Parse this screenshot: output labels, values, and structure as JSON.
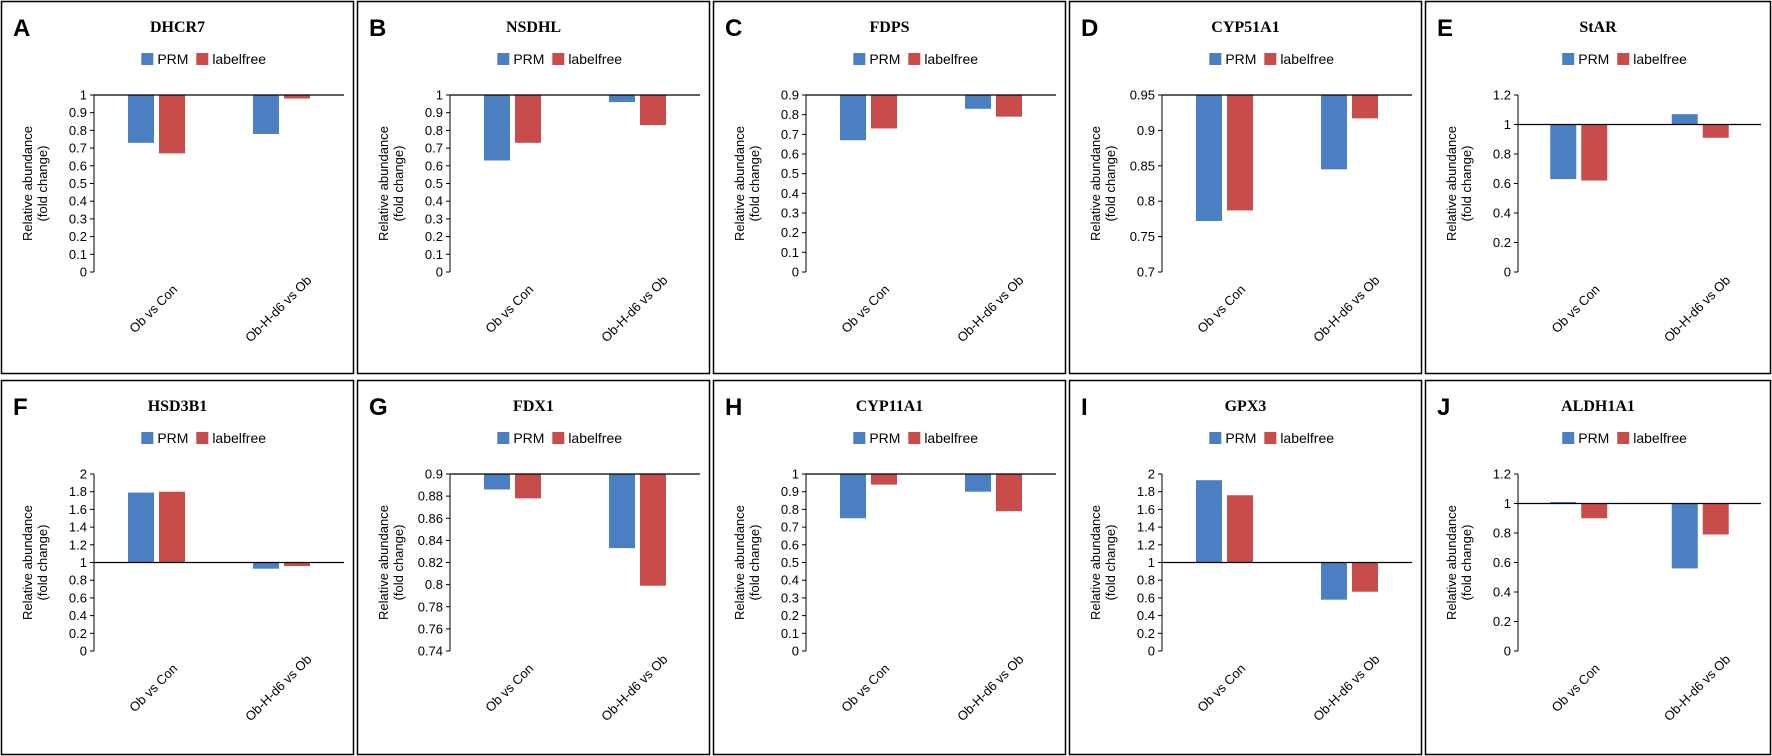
{
  "colors": {
    "PRM": "#4a7fc1",
    "labelfree": "#c84d4a"
  },
  "legend": {
    "prm": "PRM",
    "labelfree": "labelfree"
  },
  "y_label_line1": "Relative abundance",
  "y_label_line2": "(fold change)",
  "chart_data": [
    {
      "panel": "A",
      "type": "bar",
      "title": "DHCR7",
      "categories": [
        "Ob vs Con",
        "Ob-H-d6 vs Ob"
      ],
      "series": [
        {
          "name": "PRM",
          "values": [
            0.73,
            0.78
          ]
        },
        {
          "name": "labelfree",
          "values": [
            0.67,
            0.98
          ]
        }
      ],
      "ylim": [
        0,
        1
      ],
      "baseline": 1,
      "ticks": [
        "0",
        "0.1",
        "0.2",
        "0.3",
        "0.4",
        "0.5",
        "0.6",
        "0.7",
        "0.8",
        "0.9",
        "1"
      ]
    },
    {
      "panel": "B",
      "type": "bar",
      "title": "NSDHL",
      "categories": [
        "Ob vs Con",
        "Ob-H-d6 vs Ob"
      ],
      "series": [
        {
          "name": "PRM",
          "values": [
            0.63,
            0.96
          ]
        },
        {
          "name": "labelfree",
          "values": [
            0.73,
            0.83
          ]
        }
      ],
      "ylim": [
        0,
        1
      ],
      "baseline": 1,
      "ticks": [
        "0",
        "0.1",
        "0.2",
        "0.3",
        "0.4",
        "0.5",
        "0.6",
        "0.7",
        "0.8",
        "0.9",
        "1"
      ]
    },
    {
      "panel": "C",
      "type": "bar",
      "title": "FDPS",
      "categories": [
        "Ob vs Con",
        "Ob-H-d6 vs Ob"
      ],
      "series": [
        {
          "name": "PRM",
          "values": [
            0.67,
            0.83
          ]
        },
        {
          "name": "labelfree",
          "values": [
            0.73,
            0.79
          ]
        }
      ],
      "ylim": [
        0,
        0.9
      ],
      "baseline": 0.9,
      "ticks": [
        "0",
        "0.1",
        "0.2",
        "0.3",
        "0.4",
        "0.5",
        "0.6",
        "0.7",
        "0.8",
        "0.9"
      ]
    },
    {
      "panel": "D",
      "type": "bar",
      "title": "CYP51A1",
      "categories": [
        "Ob vs Con",
        "Ob-H-d6 vs Ob"
      ],
      "series": [
        {
          "name": "PRM",
          "values": [
            0.772,
            0.845
          ]
        },
        {
          "name": "labelfree",
          "values": [
            0.787,
            0.917
          ]
        }
      ],
      "ylim": [
        0.7,
        0.95
      ],
      "baseline": 0.95,
      "ticks": [
        "0.7",
        "0.75",
        "0.8",
        "0.85",
        "0.9",
        "0.95"
      ]
    },
    {
      "panel": "E",
      "type": "bar",
      "title": "StAR",
      "categories": [
        "Ob vs Con",
        "Ob-H-d6 vs Ob"
      ],
      "series": [
        {
          "name": "PRM",
          "values": [
            0.63,
            1.07
          ]
        },
        {
          "name": "labelfree",
          "values": [
            0.62,
            0.91
          ]
        }
      ],
      "ylim": [
        0,
        1.2
      ],
      "baseline": 1,
      "ticks": [
        "0",
        "0.2",
        "0.4",
        "0.6",
        "0.8",
        "1",
        "1.2"
      ]
    },
    {
      "panel": "F",
      "type": "bar",
      "title": "HSD3B1",
      "categories": [
        "Ob vs Con",
        "Ob-H-d6 vs Ob"
      ],
      "series": [
        {
          "name": "PRM",
          "values": [
            1.79,
            0.93
          ]
        },
        {
          "name": "labelfree",
          "values": [
            1.8,
            0.96
          ]
        }
      ],
      "ylim": [
        0,
        2
      ],
      "baseline": 1,
      "ticks": [
        "0",
        "0.2",
        "0.4",
        "0.6",
        "0.8",
        "1",
        "1.2",
        "1.4",
        "1.6",
        "1.8",
        "2"
      ]
    },
    {
      "panel": "G",
      "type": "bar",
      "title": "FDX1",
      "categories": [
        "Ob vs Con",
        "Ob-H-d6 vs Ob"
      ],
      "series": [
        {
          "name": "PRM",
          "values": [
            0.886,
            0.833
          ]
        },
        {
          "name": "labelfree",
          "values": [
            0.878,
            0.799
          ]
        }
      ],
      "ylim": [
        0.74,
        0.9
      ],
      "baseline": 0.9,
      "ticks": [
        "0.74",
        "0.76",
        "0.78",
        "0.8",
        "0.82",
        "0.84",
        "0.86",
        "0.88",
        "0.9"
      ]
    },
    {
      "panel": "H",
      "type": "bar",
      "title": "CYP11A1",
      "categories": [
        "Ob vs Con",
        "Ob-H-d6 vs Ob"
      ],
      "series": [
        {
          "name": "PRM",
          "values": [
            0.75,
            0.9
          ]
        },
        {
          "name": "labelfree",
          "values": [
            0.94,
            0.79
          ]
        }
      ],
      "ylim": [
        0,
        1
      ],
      "baseline": 1,
      "ticks": [
        "0",
        "0.1",
        "0.2",
        "0.3",
        "0.4",
        "0.5",
        "0.6",
        "0.7",
        "0.8",
        "0.9",
        "1"
      ]
    },
    {
      "panel": "I",
      "type": "bar",
      "title": "GPX3",
      "categories": [
        "Ob vs Con",
        "Ob-H-d6 vs Ob"
      ],
      "series": [
        {
          "name": "PRM",
          "values": [
            1.93,
            0.58
          ]
        },
        {
          "name": "labelfree",
          "values": [
            1.76,
            0.67
          ]
        }
      ],
      "ylim": [
        0,
        2
      ],
      "baseline": 1,
      "ticks": [
        "0",
        "0.2",
        "0.4",
        "0.6",
        "0.8",
        "1",
        "1.2",
        "1.4",
        "1.6",
        "1.8",
        "2"
      ]
    },
    {
      "panel": "J",
      "type": "bar",
      "title": "ALDH1A1",
      "categories": [
        "Ob vs Con",
        "Ob-H-d6 vs Ob"
      ],
      "series": [
        {
          "name": "PRM",
          "values": [
            1.01,
            0.56
          ]
        },
        {
          "name": "labelfree",
          "values": [
            0.9,
            0.79
          ]
        }
      ],
      "ylim": [
        0,
        1.2
      ],
      "baseline": 1,
      "ticks": [
        "0",
        "0.2",
        "0.4",
        "0.6",
        "0.8",
        "1",
        "1.2"
      ]
    }
  ]
}
